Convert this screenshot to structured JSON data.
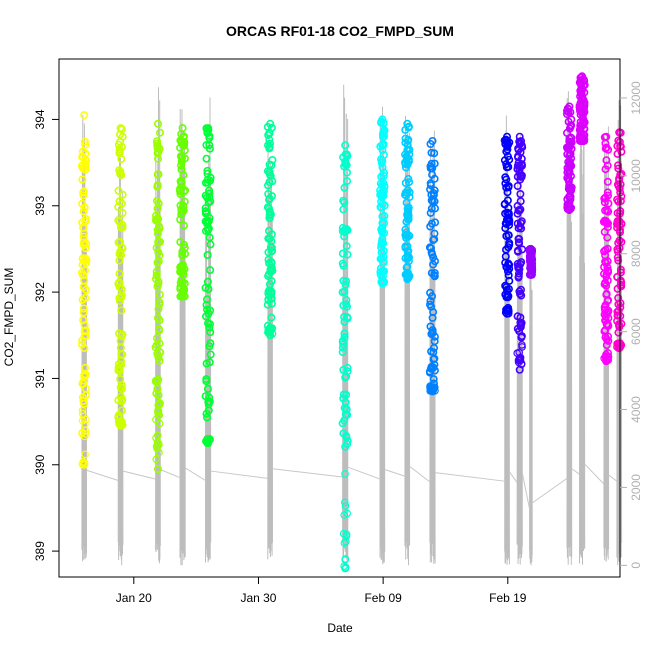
{
  "chart_data": {
    "type": "scatter",
    "title": "ORCAS RF01-18 CO2_FMPD_SUM",
    "xlabel": "Date",
    "ylabel": "CO2_FMPD_SUM",
    "xlim": [
      "2016-01-14",
      "2016-02-28"
    ],
    "ylim": [
      388.7,
      394.7
    ],
    "y2lim": [
      -300,
      13000
    ],
    "x_ticks": [
      {
        "label": "Jan 20",
        "date": "2016-01-20"
      },
      {
        "label": "Jan 30",
        "date": "2016-01-30"
      },
      {
        "label": "Feb 09",
        "date": "2016-02-09"
      },
      {
        "label": "Feb 19",
        "date": "2016-02-19"
      }
    ],
    "y_ticks": [
      389,
      390,
      391,
      392,
      393,
      394
    ],
    "y2_ticks": [
      0,
      2000,
      4000,
      6000,
      8000,
      10000,
      12000
    ],
    "grid": false,
    "flights": [
      {
        "start": "2016-01-15 20:00",
        "end": "2016-01-16 05:00",
        "color": "#ffff00",
        "ymin": 390.0,
        "ymax": 394.05,
        "core": [
          390.7,
          393.8
        ],
        "alt_max": 12200
      },
      {
        "start": "2016-01-18 18:00",
        "end": "2016-01-19 03:00",
        "color": "#ccff00",
        "ymin": 390.45,
        "ymax": 393.9,
        "core": [
          390.5,
          393.9
        ],
        "alt_max": 12100
      },
      {
        "start": "2016-01-21 18:00",
        "end": "2016-01-22 03:00",
        "color": "#99ff00",
        "ymin": 389.95,
        "ymax": 393.95,
        "core": [
          390.6,
          393.95
        ],
        "alt_max": 12300
      },
      {
        "start": "2016-01-23 17:00",
        "end": "2016-01-24 03:00",
        "color": "#66ff00",
        "ymin": 391.95,
        "ymax": 393.9,
        "core": [
          391.95,
          393.9
        ],
        "alt_max": 12500
      },
      {
        "start": "2016-01-25 18:00",
        "end": "2016-01-26 04:00",
        "color": "#00ff33",
        "ymin": 390.25,
        "ymax": 393.9,
        "core": [
          390.3,
          393.9
        ],
        "alt_max": 12100
      },
      {
        "start": "2016-01-30 18:00",
        "end": "2016-01-31 03:00",
        "color": "#00ff99",
        "ymin": 391.5,
        "ymax": 393.95,
        "core": [
          391.6,
          393.95
        ],
        "alt_max": 12400
      },
      {
        "start": "2016-02-05 18:00",
        "end": "2016-02-06 04:00",
        "color": "#00ffcc",
        "ymin": 388.8,
        "ymax": 393.7,
        "core": [
          390.1,
          393.7
        ],
        "alt_max": 12600
      },
      {
        "start": "2016-02-08 18:00",
        "end": "2016-02-09 03:00",
        "color": "#00ffff",
        "ymin": 392.1,
        "ymax": 394.0,
        "core": [
          392.2,
          394.0
        ],
        "alt_max": 12300
      },
      {
        "start": "2016-02-10 18:00",
        "end": "2016-02-11 03:00",
        "color": "#00ccff",
        "ymin": 392.15,
        "ymax": 393.95,
        "core": [
          392.2,
          393.95
        ],
        "alt_max": 12700
      },
      {
        "start": "2016-02-12 18:00",
        "end": "2016-02-13 04:00",
        "color": "#0080ff",
        "ymin": 390.85,
        "ymax": 393.75,
        "core": [
          390.9,
          393.75
        ],
        "alt_max": 11900
      },
      {
        "start": "2016-02-18 18:00",
        "end": "2016-02-19 03:00",
        "color": "#0000ff",
        "ymin": 391.75,
        "ymax": 393.8,
        "core": [
          391.8,
          393.8
        ],
        "alt_max": 12000
      },
      {
        "start": "2016-02-19 18:00",
        "end": "2016-02-20 04:00",
        "color": "#4400ff",
        "ymin": 391.1,
        "ymax": 393.8,
        "core": [
          391.4,
          393.8
        ],
        "alt_max": 11800
      },
      {
        "start": "2016-02-20 18:00",
        "end": "2016-02-20 23:00",
        "color": "#9900ff",
        "ymin": 392.2,
        "ymax": 392.5,
        "core": [
          392.2,
          392.5
        ],
        "alt_max": 8000
      },
      {
        "start": "2016-02-23 18:00",
        "end": "2016-02-24 03:00",
        "color": "#cc00ff",
        "ymin": 392.95,
        "ymax": 394.15,
        "core": [
          393.0,
          394.15
        ],
        "alt_max": 12400
      },
      {
        "start": "2016-02-24 18:00",
        "end": "2016-02-25 04:00",
        "color": "#dd00ff",
        "ymin": 393.75,
        "ymax": 394.5,
        "core": [
          393.75,
          394.5
        ],
        "alt_max": 13000
      },
      {
        "start": "2016-02-26 17:00",
        "end": "2016-02-27 02:00",
        "color": "#ff00ff",
        "ymin": 391.2,
        "ymax": 393.8,
        "core": [
          391.3,
          393.8
        ],
        "alt_max": 11600
      },
      {
        "start": "2016-02-27 18:00",
        "end": "2016-02-28 03:00",
        "color": "#ff00cc",
        "ymin": 391.35,
        "ymax": 393.85,
        "core": [
          391.4,
          393.85
        ],
        "alt_max": 12000
      }
    ]
  }
}
